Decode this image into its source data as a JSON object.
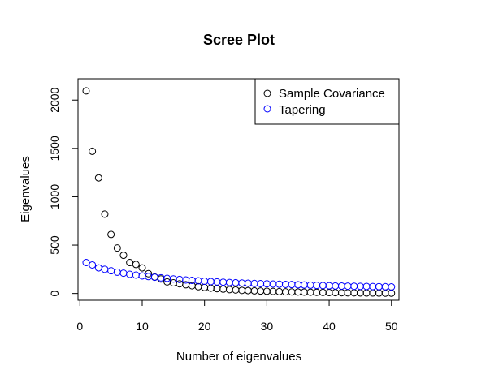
{
  "chart_data": {
    "type": "scatter",
    "title": "Scree Plot",
    "xlabel": "Number of eigenvalues",
    "ylabel": "Eigenvalues",
    "xlim": [
      0,
      50
    ],
    "ylim": [
      -70,
      2220
    ],
    "x_ticks": [
      0,
      10,
      20,
      30,
      40,
      50
    ],
    "y_ticks": [
      0,
      500,
      1000,
      1500,
      2000
    ],
    "grid": false,
    "legend_position": "top-right",
    "x": [
      1,
      2,
      3,
      4,
      5,
      6,
      7,
      8,
      9,
      10,
      11,
      12,
      13,
      14,
      15,
      16,
      17,
      18,
      19,
      20,
      21,
      22,
      23,
      24,
      25,
      26,
      27,
      28,
      29,
      30,
      31,
      32,
      33,
      34,
      35,
      36,
      37,
      38,
      39,
      40,
      41,
      42,
      43,
      44,
      45,
      46,
      47,
      48,
      49,
      50
    ],
    "series": [
      {
        "name": "Sample Covariance",
        "color": "#000000",
        "values": [
          2095,
          1470,
          1195,
          820,
          610,
          470,
          395,
          320,
          300,
          265,
          205,
          170,
          150,
          120,
          110,
          100,
          90,
          80,
          70,
          62,
          55,
          50,
          45,
          40,
          36,
          32,
          30,
          27,
          25,
          23,
          21,
          19,
          17,
          16,
          15,
          14,
          13,
          12,
          11,
          10,
          9,
          8,
          7,
          7,
          6,
          5,
          5,
          4,
          3,
          3
        ]
      },
      {
        "name": "Tapering",
        "color": "#0000ff",
        "values": [
          320,
          295,
          265,
          250,
          235,
          220,
          210,
          198,
          190,
          182,
          175,
          168,
          162,
          156,
          150,
          145,
          140,
          135,
          131,
          127,
          123,
          120,
          117,
          114,
          111,
          108,
          106,
          104,
          102,
          100,
          98,
          96,
          94,
          92,
          90,
          88,
          86,
          84,
          82,
          80,
          78,
          77,
          76,
          75,
          74,
          73,
          72,
          71,
          70,
          68
        ]
      }
    ]
  }
}
